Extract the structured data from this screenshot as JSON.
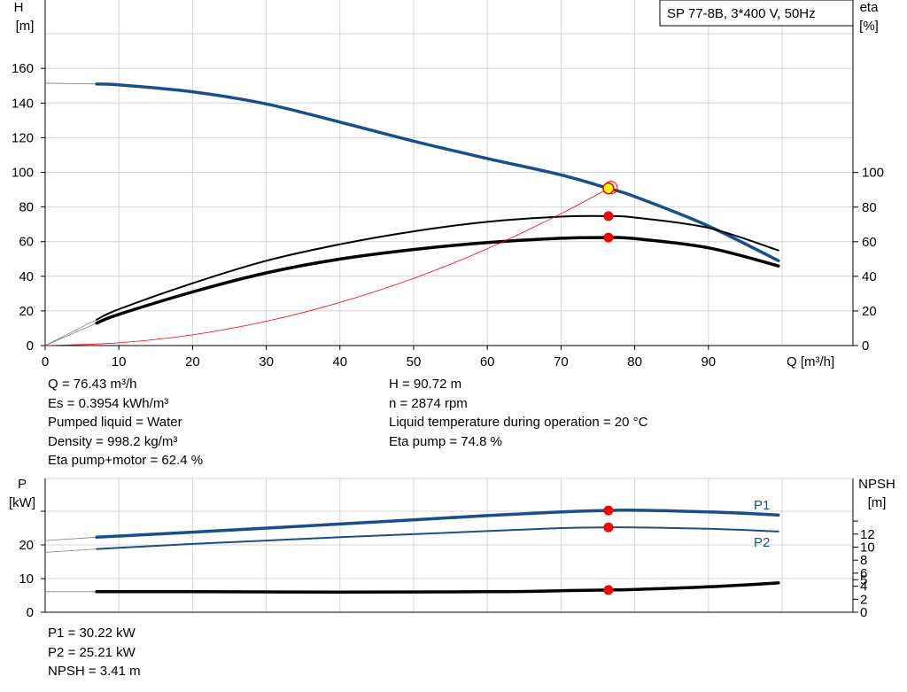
{
  "chart_data": [
    {
      "type": "line",
      "title": "SP 77-8B, 3*400 V, 50Hz",
      "xlabel": "Q [m³/h]",
      "ylabel_left": [
        "H",
        "[m]"
      ],
      "ylabel_right": [
        "eta",
        "[%]"
      ],
      "xlim": [
        0,
        100
      ],
      "ylim": [
        0,
        180
      ],
      "eta_lim": [
        0,
        100
      ],
      "grid": true,
      "x_ticks": [
        0,
        10,
        20,
        30,
        40,
        50,
        60,
        70,
        80,
        90
      ],
      "y_ticks": [
        0,
        20,
        40,
        60,
        80,
        100,
        120,
        140,
        160
      ],
      "eta_ticks": [
        0,
        20,
        40,
        60,
        80,
        100
      ],
      "series": [
        {
          "key": "H",
          "color": "#1a4e8a",
          "dashed_start": [
            [
              0,
              151.5
            ],
            [
              7,
              151
            ]
          ],
          "points": [
            [
              7,
              151
            ],
            [
              10,
              150.5
            ],
            [
              20,
              146.5
            ],
            [
              30,
              139.5
            ],
            [
              40,
              129
            ],
            [
              50,
              118
            ],
            [
              60,
              108
            ],
            [
              70,
              98.5
            ],
            [
              76.43,
              90.72
            ],
            [
              80,
              86
            ],
            [
              90,
              69
            ],
            [
              99.5,
              49
            ]
          ]
        },
        {
          "key": "eta_pump",
          "color": "#000000",
          "dashed_start": [
            [
              0,
              0
            ],
            [
              7,
              15
            ]
          ],
          "points": [
            [
              7,
              15
            ],
            [
              10,
              21
            ],
            [
              20,
              36
            ],
            [
              30,
              49
            ],
            [
              40,
              58.5
            ],
            [
              50,
              66
            ],
            [
              60,
              71.5
            ],
            [
              70,
              74.5
            ],
            [
              76.43,
              74.8
            ],
            [
              80,
              74
            ],
            [
              90,
              68
            ],
            [
              99.5,
              55
            ]
          ]
        },
        {
          "key": "eta_total",
          "color": "#000000",
          "dashed_start": [
            [
              0,
              0
            ],
            [
              7,
              13
            ]
          ],
          "points": [
            [
              7,
              13
            ],
            [
              10,
              18
            ],
            [
              20,
              31
            ],
            [
              30,
              42
            ],
            [
              40,
              50
            ],
            [
              50,
              55.5
            ],
            [
              60,
              59.5
            ],
            [
              70,
              62
            ],
            [
              76.43,
              62.4
            ],
            [
              80,
              61.8
            ],
            [
              90,
              56.5
            ],
            [
              99.5,
              46
            ]
          ]
        },
        {
          "key": "system_curve",
          "color": "#ff0000",
          "points": [
            [
              0,
              0
            ],
            [
              10,
              1.6
            ],
            [
              20,
              6.2
            ],
            [
              30,
              14
            ],
            [
              40,
              24.9
            ],
            [
              50,
              38.8
            ],
            [
              60,
              55.9
            ],
            [
              70,
              76.1
            ],
            [
              76.43,
              90.72
            ],
            [
              77,
              92
            ]
          ]
        }
      ],
      "operating_point": {
        "Q": 76.43,
        "H": 90.72,
        "eta_pump": 74.8,
        "eta_total": 62.4
      }
    },
    {
      "type": "line",
      "xlim": [
        0,
        100
      ],
      "ylim": [
        0,
        30
      ],
      "npsh_lim": [
        0,
        15
      ],
      "grid": true,
      "ylabel_left": [
        "P",
        "[kW]"
      ],
      "ylabel_right": [
        "NPSH",
        "[m]"
      ],
      "y_ticks": [
        0,
        10,
        20
      ],
      "npsh_ticks": [
        0,
        2,
        4,
        5,
        6,
        8,
        10,
        12
      ],
      "series": [
        {
          "key": "P1",
          "name": "P1",
          "color": "#1a4e8a",
          "dashed_start": [
            [
              0,
              21.3
            ],
            [
              7,
              22.3
            ]
          ],
          "points": [
            [
              7,
              22.3
            ],
            [
              20,
              23.8
            ],
            [
              40,
              26.2
            ],
            [
              60,
              28.7
            ],
            [
              70,
              29.8
            ],
            [
              76.43,
              30.22
            ],
            [
              80,
              30.3
            ],
            [
              90,
              29.8
            ],
            [
              99.5,
              28.9
            ]
          ]
        },
        {
          "key": "P2",
          "name": "P2",
          "color": "#1a4e8a",
          "dashed_start": [
            [
              0,
              17.8
            ],
            [
              7,
              18.8
            ]
          ],
          "points": [
            [
              7,
              18.8
            ],
            [
              20,
              20.3
            ],
            [
              40,
              22.3
            ],
            [
              60,
              24.1
            ],
            [
              70,
              25
            ],
            [
              76.43,
              25.21
            ],
            [
              80,
              25.2
            ],
            [
              90,
              24.8
            ],
            [
              99.5,
              24
            ]
          ]
        },
        {
          "key": "NPSH",
          "color": "#000000",
          "dashed_start": [
            [
              0,
              3.15
            ],
            [
              7,
              3.15
            ]
          ],
          "points": [
            [
              7,
              3.15
            ],
            [
              20,
              3.15
            ],
            [
              40,
              3.1
            ],
            [
              60,
              3.15
            ],
            [
              70,
              3.3
            ],
            [
              76.43,
              3.41
            ],
            [
              80,
              3.5
            ],
            [
              90,
              3.9
            ],
            [
              99.5,
              4.5
            ]
          ]
        }
      ],
      "operating_point": {
        "Q": 76.43,
        "P1": 30.22,
        "P2": 25.21,
        "NPSH": 3.41
      }
    }
  ],
  "info_left": [
    "Q = 76.43 m³/h",
    "Es = 0.3954 kWh/m³",
    "Pumped liquid = Water",
    "Density = 998.2 kg/m³",
    "Eta pump+motor = 62.4 %"
  ],
  "info_right": [
    "H = 90.72 m",
    "n = 2874 rpm",
    "Liquid temperature during operation = 20 °C",
    "Eta pump = 74.8 %"
  ],
  "info_bottom": [
    "P1 = 30.22 kW",
    "P2 = 25.21 kW",
    "NPSH = 3.41 m"
  ],
  "colors": {
    "blue_curve": "#1a4e8a",
    "operating_point": "#ff0000",
    "duty_marker": "#ffff00",
    "grid": "#d4d4d4"
  }
}
